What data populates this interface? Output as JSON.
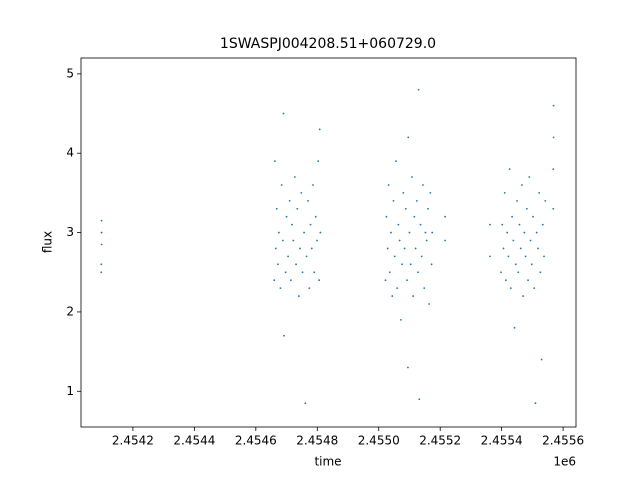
{
  "chart_data": {
    "type": "scatter",
    "title": "1SWASPJ004208.51+060729.0",
    "xlabel": "time",
    "ylabel": "flux",
    "x_offset_label": "1e6",
    "color": "#1f77b4",
    "xlim": [
      2454031,
      2455642
    ],
    "ylim": [
      0.55,
      5.2
    ],
    "xticks": [
      {
        "value": 2454200,
        "label": "2.4542"
      },
      {
        "value": 2454400,
        "label": "2.4544"
      },
      {
        "value": 2454600,
        "label": "2.4546"
      },
      {
        "value": 2454800,
        "label": "2.4548"
      },
      {
        "value": 2455000,
        "label": "2.4550"
      },
      {
        "value": 2455200,
        "label": "2.4552"
      },
      {
        "value": 2455400,
        "label": "2.4554"
      },
      {
        "value": 2455600,
        "label": "2.4556"
      }
    ],
    "yticks": [
      1,
      2,
      3,
      4,
      5
    ],
    "x": [
      2454097,
      2454097,
      2454098,
      2454098,
      2454098,
      2454660,
      2454662,
      2454665,
      2454668,
      2454672,
      2454675,
      2454680,
      2454684,
      2454688,
      2454692,
      2454697,
      2454700,
      2454705,
      2454710,
      2454714,
      2454718,
      2454722,
      2454727,
      2454731,
      2454735,
      2454740,
      2454744,
      2454748,
      2454752,
      2454757,
      2454761,
      2454765,
      2454770,
      2454774,
      2454778,
      2454782,
      2454786,
      2454790,
      2454795,
      2454799,
      2454803,
      2454806,
      2454810,
      2454808,
      2454690,
      2455022,
      2455025,
      2455029,
      2455032,
      2455036,
      2455040,
      2455044,
      2455048,
      2455052,
      2455056,
      2455060,
      2455064,
      2455068,
      2455072,
      2455076,
      2455080,
      2455084,
      2455088,
      2455092,
      2455096,
      2455100,
      2455104,
      2455108,
      2455112,
      2455116,
      2455120,
      2455124,
      2455128,
      2455132,
      2455136,
      2455140,
      2455144,
      2455148,
      2455152,
      2455156,
      2455160,
      2455164,
      2455168,
      2455172,
      2455174,
      2455216,
      2455216,
      2455130,
      2455095,
      2455398,
      2455402,
      2455406,
      2455410,
      2455414,
      2455418,
      2455422,
      2455426,
      2455430,
      2455434,
      2455438,
      2455442,
      2455446,
      2455450,
      2455454,
      2455458,
      2455462,
      2455466,
      2455470,
      2455474,
      2455478,
      2455482,
      2455486,
      2455490,
      2455494,
      2455498,
      2455502,
      2455506,
      2455510,
      2455514,
      2455518,
      2455522,
      2455526,
      2455530,
      2455534,
      2455538,
      2455542,
      2455568,
      2455568,
      2455569,
      2455569,
      2455362,
      2455362
    ],
    "y": [
      2.5,
      2.6,
      2.85,
      3.0,
      3.15,
      2.4,
      3.9,
      2.8,
      3.3,
      2.6,
      3.0,
      2.3,
      3.6,
      2.9,
      1.7,
      2.5,
      3.2,
      2.7,
      3.4,
      2.4,
      3.1,
      2.9,
      3.7,
      2.6,
      3.3,
      2.2,
      2.8,
      3.5,
      2.5,
      3.0,
      0.85,
      2.7,
      3.4,
      2.3,
      3.1,
      2.8,
      3.6,
      2.5,
      3.2,
      2.9,
      3.9,
      2.4,
      3.0,
      4.3,
      4.5,
      2.4,
      3.2,
      2.8,
      3.6,
      2.5,
      3.0,
      2.2,
      3.4,
      2.7,
      3.9,
      2.3,
      3.1,
      2.9,
      1.9,
      2.6,
      3.5,
      2.8,
      3.3,
      2.4,
      4.2,
      3.0,
      2.6,
      3.7,
      2.2,
      3.2,
      2.8,
      3.4,
      2.5,
      0.9,
      3.1,
      2.7,
      3.6,
      2.3,
      3.0,
      2.9,
      3.3,
      2.1,
      3.5,
      2.6,
      3.0,
      2.9,
      3.2,
      4.8,
      1.3,
      2.5,
      3.1,
      2.8,
      3.5,
      2.4,
      3.0,
      2.7,
      3.8,
      2.3,
      3.2,
      2.9,
      1.8,
      2.6,
      3.4,
      2.5,
      3.1,
      2.8,
      3.6,
      2.2,
      3.0,
      2.7,
      3.3,
      2.4,
      3.7,
      2.9,
      2.6,
      3.2,
      2.3,
      0.85,
      3.0,
      2.8,
      3.5,
      2.5,
      1.4,
      3.1,
      2.7,
      3.4,
      3.3,
      3.8,
      4.2,
      4.6,
      2.7,
      3.1
    ]
  }
}
